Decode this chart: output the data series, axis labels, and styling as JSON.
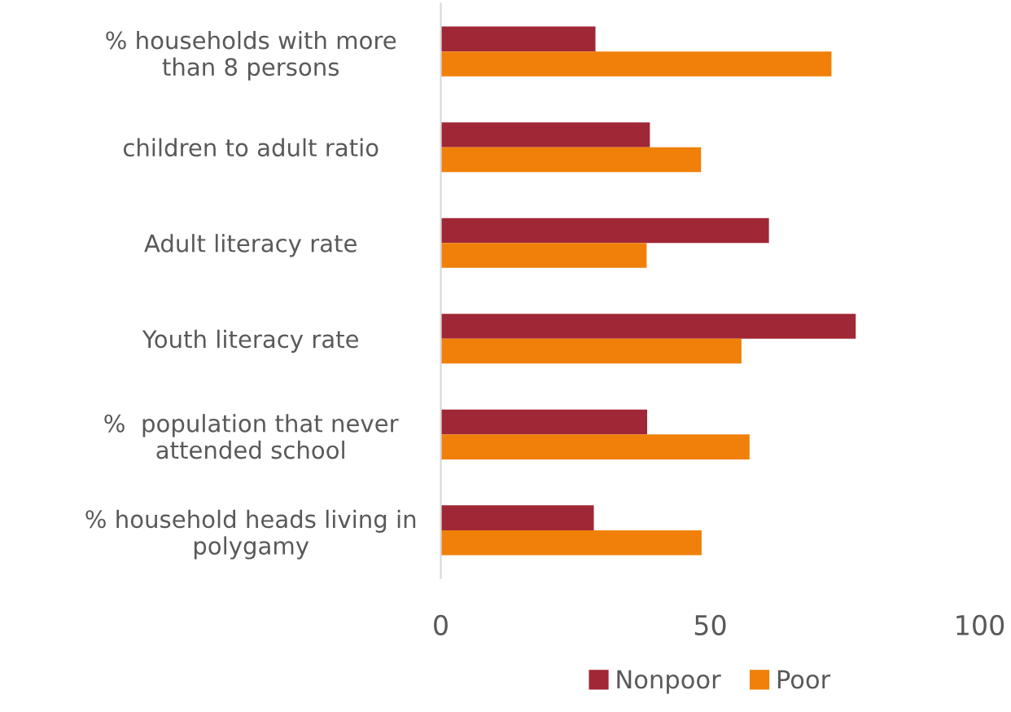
{
  "chart_data": {
    "type": "bar",
    "orientation": "horizontal",
    "categories": [
      "% households with more\nthan 8 persons",
      "children to adult ratio",
      "Adult literacy rate",
      "Youth literacy rate",
      "%  population that never\nattended school",
      "% household heads living in\npolygamy"
    ],
    "series": [
      {
        "name": "Nonpoor",
        "color": "#a02735",
        "values": [
          28.7,
          38.8,
          60.9,
          77,
          38.3,
          28.4
        ]
      },
      {
        "name": "Poor",
        "color": "#f0800a",
        "values": [
          72.5,
          48.3,
          38.2,
          55.8,
          57.3,
          48.4
        ]
      }
    ],
    "xlim": [
      0,
      100
    ],
    "xticks": [
      0,
      50,
      100
    ],
    "grid": false,
    "legend": "bottom"
  }
}
